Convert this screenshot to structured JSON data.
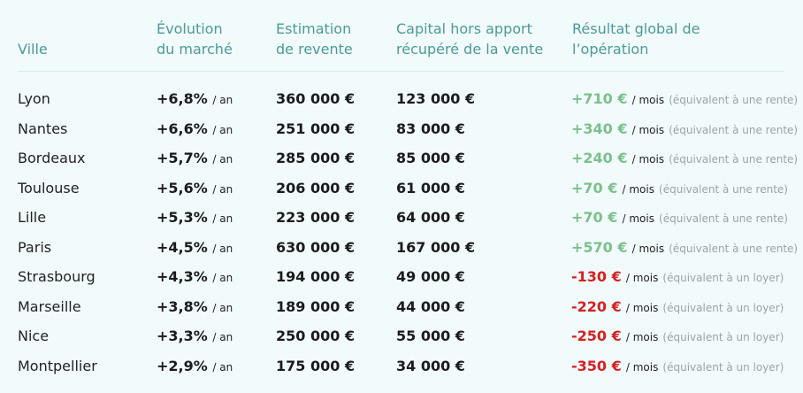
{
  "headers": {
    "ville": "Ville",
    "evolution_l1": "Évolution",
    "evolution_l2": "du marché",
    "estimation_l1": "Estimation",
    "estimation_l2": "de revente",
    "capital_l1": "Capital hors apport",
    "capital_l2": "récupéré de la vente",
    "resultat_l1": "Résultat global de",
    "resultat_l2": "l’opération"
  },
  "colors": {
    "header": "#4a9a98",
    "positive": "#7bc08b",
    "negative": "#d62020",
    "note": "#9aa4a4",
    "background": "#f2fbfb"
  },
  "rows": [
    {
      "ville": "Lyon",
      "evolution": "+6,8%",
      "evolution_unit": "/ an",
      "estimation": "360 000 €",
      "capital": "123 000 €",
      "resultat": "+710 €",
      "resultat_unit": "/ mois",
      "note": "(équivalent à une rente)",
      "sign": "pos"
    },
    {
      "ville": "Nantes",
      "evolution": "+6,6%",
      "evolution_unit": "/ an",
      "estimation": "251 000 €",
      "capital": "83 000 €",
      "resultat": "+340 €",
      "resultat_unit": "/ mois",
      "note": "(équivalent à une rente)",
      "sign": "pos"
    },
    {
      "ville": "Bordeaux",
      "evolution": "+5,7%",
      "evolution_unit": "/ an",
      "estimation": "285 000 €",
      "capital": "85 000 €",
      "resultat": "+240 €",
      "resultat_unit": "/ mois",
      "note": "(équivalent à une rente)",
      "sign": "pos"
    },
    {
      "ville": "Toulouse",
      "evolution": "+5,6%",
      "evolution_unit": "/ an",
      "estimation": "206 000 €",
      "capital": "61 000 €",
      "resultat": "+70 €",
      "resultat_unit": "/ mois",
      "note": "(équivalent à une rente)",
      "sign": "pos"
    },
    {
      "ville": "Lille",
      "evolution": "+5,3%",
      "evolution_unit": "/ an",
      "estimation": "223 000 €",
      "capital": "64 000 €",
      "resultat": "+70 €",
      "resultat_unit": "/ mois",
      "note": "(équivalent à une rente)",
      "sign": "pos"
    },
    {
      "ville": "Paris",
      "evolution": "+4,5%",
      "evolution_unit": "/ an",
      "estimation": "630 000 €",
      "capital": "167 000 €",
      "resultat": "+570 €",
      "resultat_unit": "/ mois",
      "note": "(équivalent à une rente)",
      "sign": "pos"
    },
    {
      "ville": "Strasbourg",
      "evolution": "+4,3%",
      "evolution_unit": "/ an",
      "estimation": "194 000 €",
      "capital": "49 000 €",
      "resultat": "-130 €",
      "resultat_unit": "/ mois",
      "note": "(équivalent à un loyer)",
      "sign": "neg"
    },
    {
      "ville": "Marseille",
      "evolution": "+3,8%",
      "evolution_unit": "/ an",
      "estimation": "189 000 €",
      "capital": "44 000 €",
      "resultat": "-220 €",
      "resultat_unit": "/ mois",
      "note": "(équivalent à un loyer)",
      "sign": "neg"
    },
    {
      "ville": "Nice",
      "evolution": "+3,3%",
      "evolution_unit": "/ an",
      "estimation": "250 000 €",
      "capital": "55 000 €",
      "resultat": "-250 €",
      "resultat_unit": "/ mois",
      "note": "(équivalent à un loyer)",
      "sign": "neg"
    },
    {
      "ville": "Montpellier",
      "evolution": "+2,9%",
      "evolution_unit": "/ an",
      "estimation": "175 000 €",
      "capital": "34 000 €",
      "resultat": "-350 €",
      "resultat_unit": "/ mois",
      "note": "(équivalent à un loyer)",
      "sign": "neg"
    }
  ]
}
